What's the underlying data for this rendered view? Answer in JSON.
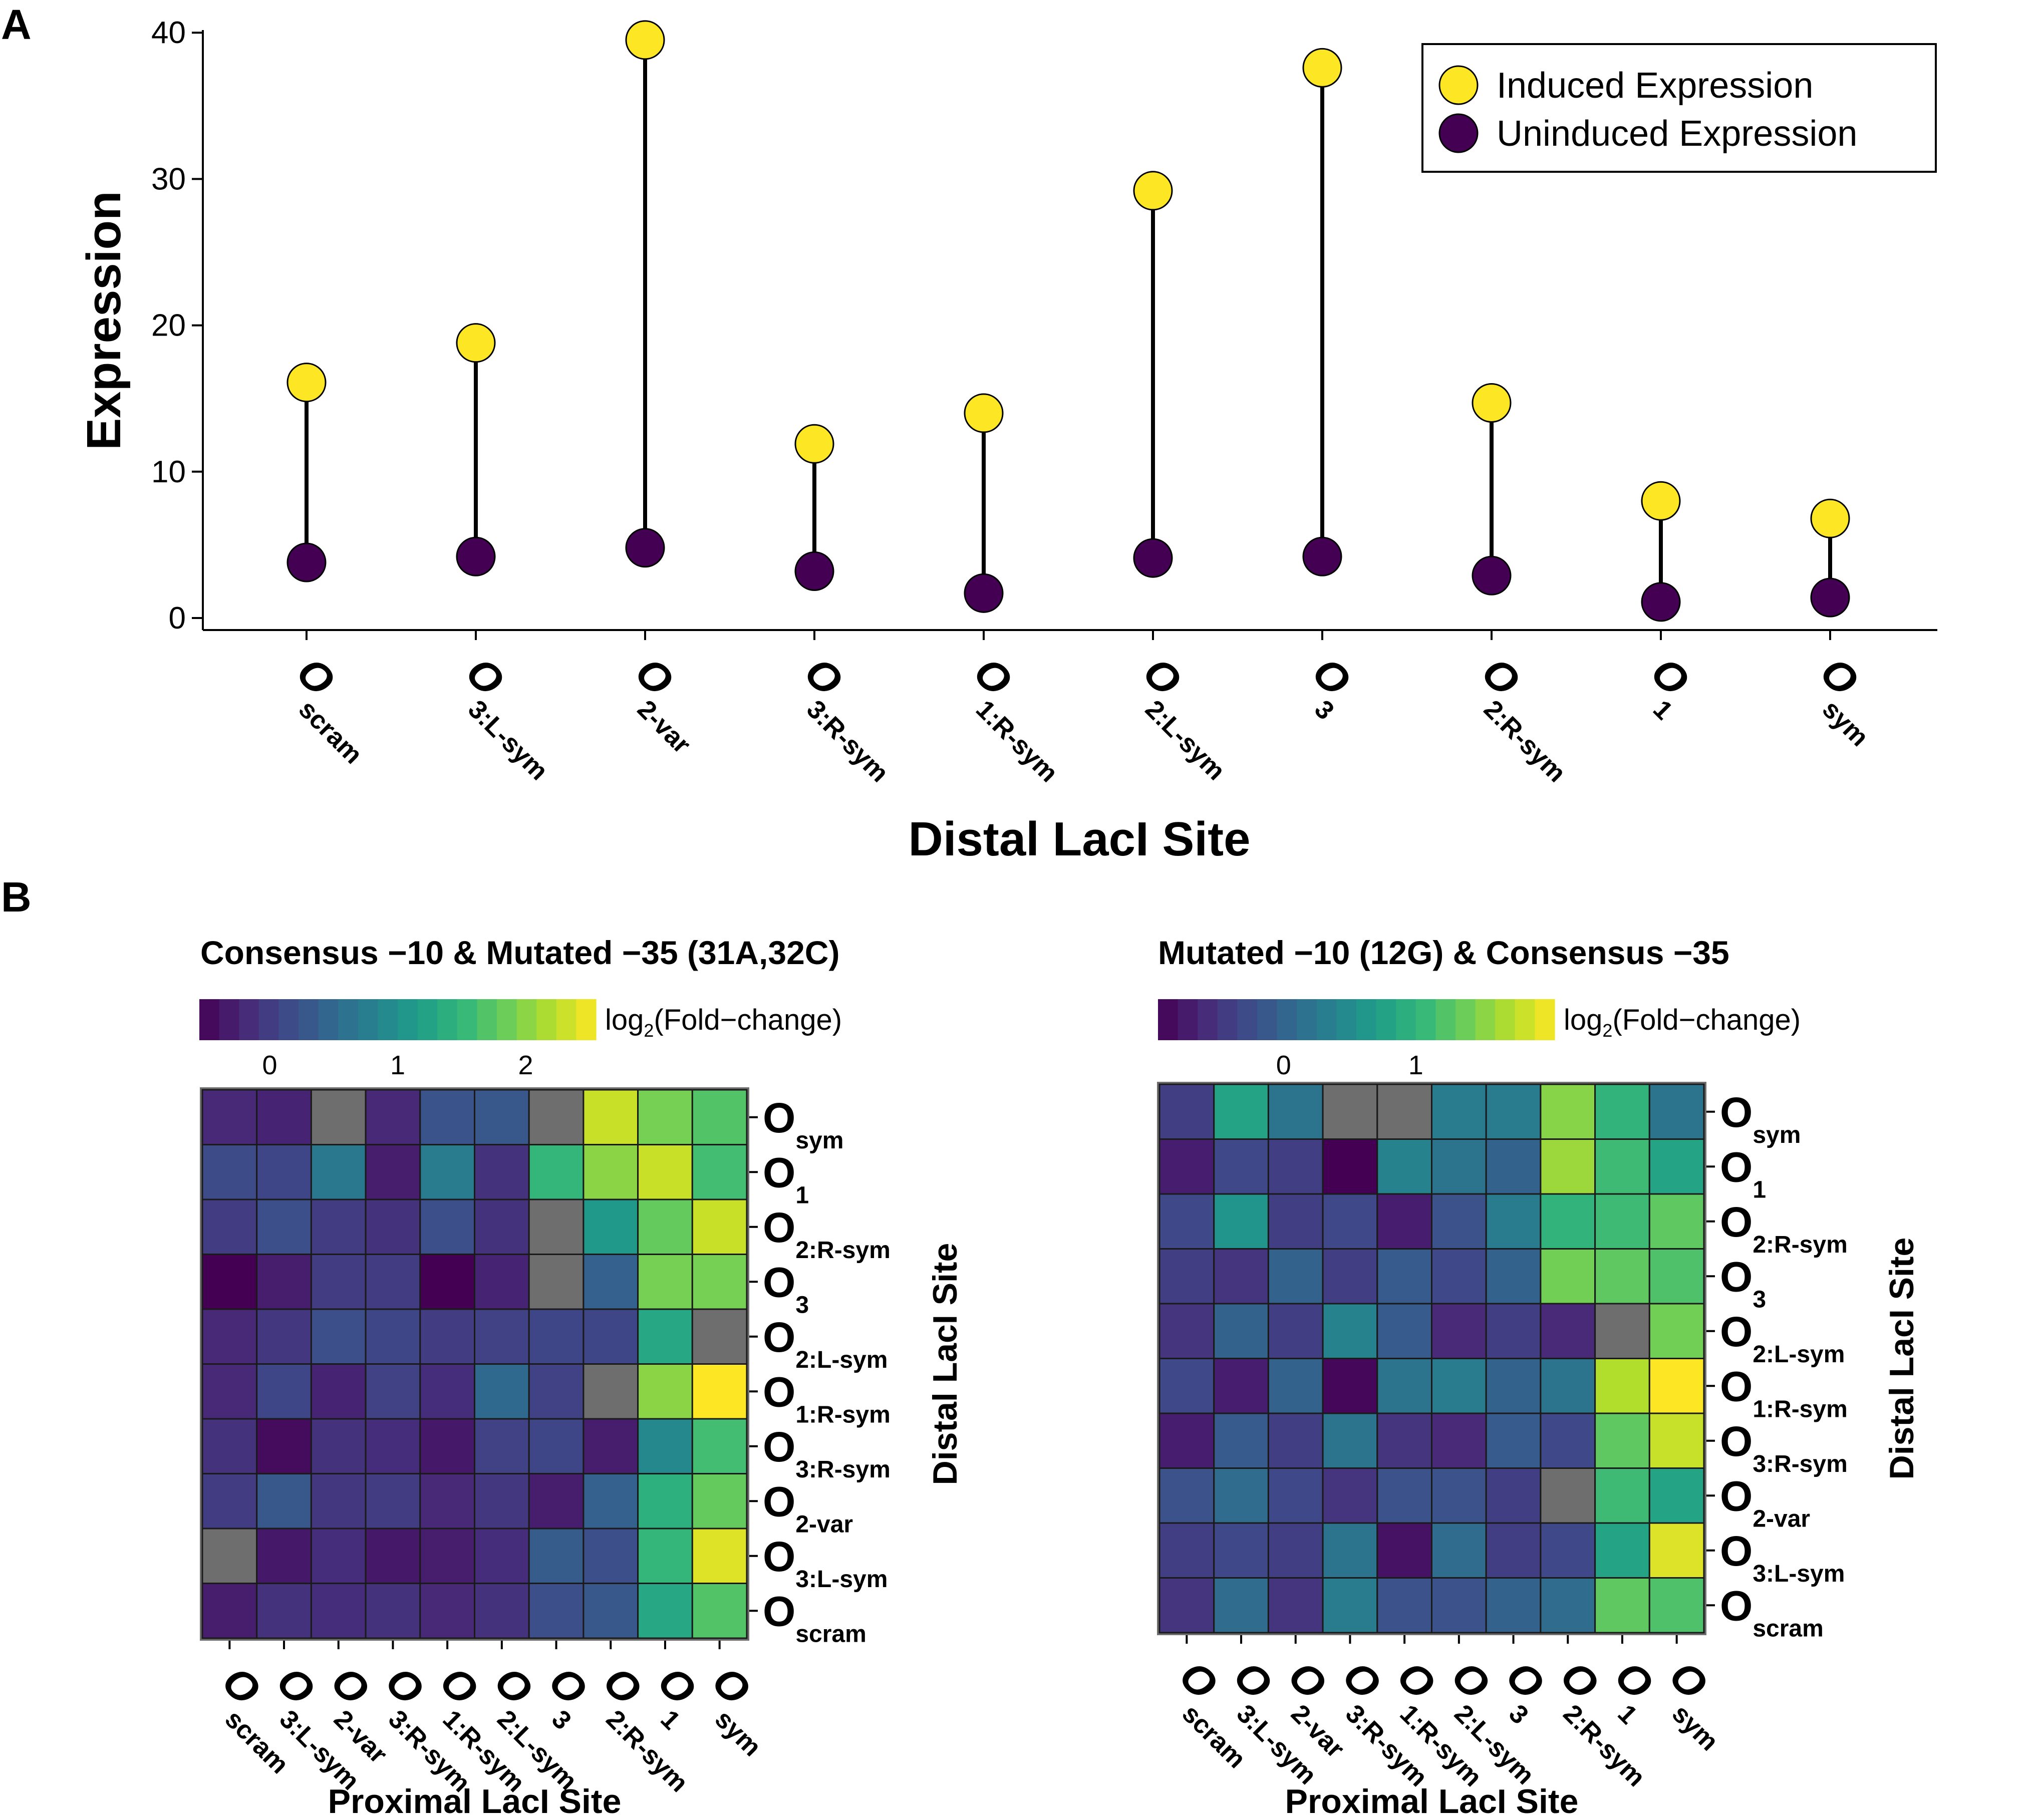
{
  "panels": {
    "a": "A",
    "b": "B"
  },
  "chart_data": [
    {
      "type": "scatter",
      "subtype": "dumbbell",
      "xlabel": "Distal LacI Site",
      "ylabel": "Expression",
      "ylim": [
        0,
        41
      ],
      "yticks": [
        0,
        10,
        20,
        30,
        40
      ],
      "grid": false,
      "legend_position": "top-right",
      "categories": [
        {
          "main": "O",
          "sub": "scram"
        },
        {
          "main": "O",
          "sub": "3:L-sym"
        },
        {
          "main": "O",
          "sub": "2-var"
        },
        {
          "main": "O",
          "sub": "3:R-sym"
        },
        {
          "main": "O",
          "sub": "1:R-sym"
        },
        {
          "main": "O",
          "sub": "2:L-sym"
        },
        {
          "main": "O",
          "sub": "3"
        },
        {
          "main": "O",
          "sub": "2:R-sym"
        },
        {
          "main": "O",
          "sub": "1"
        },
        {
          "main": "O",
          "sub": "sym"
        }
      ],
      "series": [
        {
          "name": "Induced Expression",
          "color": "#FDE725",
          "values": [
            16.1,
            18.8,
            39.5,
            11.9,
            14.0,
            29.2,
            37.6,
            14.7,
            8.0,
            6.8
          ]
        },
        {
          "name": "Uninduced Expression",
          "color": "#440154",
          "values": [
            3.8,
            4.2,
            4.8,
            3.2,
            1.7,
            4.1,
            4.2,
            2.9,
            1.1,
            1.4
          ]
        }
      ]
    },
    {
      "type": "heatmap",
      "title": "Consensus −10 & Mutated −35 (31A,32C)",
      "colorbar": {
        "label_main": "log",
        "label_sub": "2",
        "label_rest": "(Fold−change)",
        "min": -0.55,
        "max": 2.55,
        "ticks": [
          0,
          1,
          2
        ]
      },
      "xlabel": "Proximal LacI Site",
      "ylabel": "Distal LacI Site",
      "missing_color": "#6e6e6e",
      "x_categories": [
        {
          "main": "O",
          "sub": "scram"
        },
        {
          "main": "O",
          "sub": "3:L-sym"
        },
        {
          "main": "O",
          "sub": "2-var"
        },
        {
          "main": "O",
          "sub": "3:R-sym"
        },
        {
          "main": "O",
          "sub": "1:R-sym"
        },
        {
          "main": "O",
          "sub": "2:L-sym"
        },
        {
          "main": "O",
          "sub": "3"
        },
        {
          "main": "O",
          "sub": "2:R-sym"
        },
        {
          "main": "O",
          "sub": "1"
        },
        {
          "main": "O",
          "sub": "sym"
        }
      ],
      "y_categories": [
        {
          "main": "O",
          "sub": "sym"
        },
        {
          "main": "O",
          "sub": "1"
        },
        {
          "main": "O",
          "sub": "2:R-sym"
        },
        {
          "main": "O",
          "sub": "3"
        },
        {
          "main": "O",
          "sub": "2:L-sym"
        },
        {
          "main": "O",
          "sub": "1:R-sym"
        },
        {
          "main": "O",
          "sub": "3:R-sym"
        },
        {
          "main": "O",
          "sub": "2-var"
        },
        {
          "main": "O",
          "sub": "3:L-sym"
        },
        {
          "main": "O",
          "sub": "scram"
        }
      ],
      "values": [
        [
          -0.2,
          -0.25,
          null,
          -0.2,
          0.25,
          0.3,
          null,
          2.3,
          1.9,
          1.7
        ],
        [
          0.15,
          0.1,
          0.7,
          -0.3,
          0.75,
          -0.1,
          1.5,
          2.0,
          2.3,
          1.6
        ],
        [
          0.0,
          0.2,
          0.0,
          -0.1,
          0.2,
          -0.1,
          null,
          1.1,
          1.8,
          2.3
        ],
        [
          -0.55,
          -0.3,
          0.0,
          0.0,
          -0.55,
          -0.25,
          null,
          0.4,
          1.9,
          1.9
        ],
        [
          -0.2,
          -0.05,
          0.2,
          0.1,
          0.0,
          0.05,
          0.1,
          0.1,
          1.3,
          null
        ],
        [
          -0.2,
          0.1,
          -0.25,
          0.05,
          -0.15,
          0.5,
          0.05,
          null,
          2.0,
          2.55
        ],
        [
          -0.1,
          -0.45,
          -0.1,
          -0.15,
          -0.35,
          0.05,
          0.1,
          -0.3,
          0.9,
          1.6
        ],
        [
          0.0,
          0.3,
          -0.05,
          0.0,
          -0.2,
          -0.05,
          -0.3,
          0.4,
          1.4,
          1.8
        ],
        [
          null,
          -0.35,
          -0.15,
          -0.35,
          -0.3,
          -0.15,
          0.35,
          0.2,
          1.5,
          2.4
        ],
        [
          -0.3,
          -0.1,
          -0.15,
          -0.1,
          -0.2,
          -0.1,
          0.2,
          0.3,
          1.3,
          1.7
        ]
      ]
    },
    {
      "type": "heatmap",
      "title": "Mutated −10 (12G) & Consensus −35",
      "colorbar": {
        "label_main": "log",
        "label_sub": "2",
        "label_rest": "(Fold−change)",
        "min": -0.95,
        "max": 2.05,
        "ticks": [
          0,
          1
        ]
      },
      "xlabel": "Proximal LacI Site",
      "ylabel": "Distal LacI Site",
      "missing_color": "#6e6e6e",
      "x_categories": [
        {
          "main": "O",
          "sub": "scram"
        },
        {
          "main": "O",
          "sub": "3:L-sym"
        },
        {
          "main": "O",
          "sub": "2-var"
        },
        {
          "main": "O",
          "sub": "3:R-sym"
        },
        {
          "main": "O",
          "sub": "1:R-sym"
        },
        {
          "main": "O",
          "sub": "2:L-sym"
        },
        {
          "main": "O",
          "sub": "3"
        },
        {
          "main": "O",
          "sub": "2:R-sym"
        },
        {
          "main": "O",
          "sub": "1"
        },
        {
          "main": "O",
          "sub": "sym"
        }
      ],
      "y_categories": [
        {
          "main": "O",
          "sub": "sym"
        },
        {
          "main": "O",
          "sub": "1"
        },
        {
          "main": "O",
          "sub": "2:R-sym"
        },
        {
          "main": "O",
          "sub": "3"
        },
        {
          "main": "O",
          "sub": "2:L-sym"
        },
        {
          "main": "O",
          "sub": "1:R-sym"
        },
        {
          "main": "O",
          "sub": "3:R-sym"
        },
        {
          "main": "O",
          "sub": "2-var"
        },
        {
          "main": "O",
          "sub": "3:L-sym"
        },
        {
          "main": "O",
          "sub": "scram"
        }
      ],
      "values": [
        [
          -0.4,
          0.8,
          0.2,
          null,
          null,
          0.3,
          0.3,
          1.5,
          1.0,
          0.2
        ],
        [
          -0.7,
          -0.3,
          -0.4,
          -0.95,
          0.4,
          0.2,
          0.0,
          1.6,
          1.1,
          0.8
        ],
        [
          -0.3,
          0.6,
          -0.4,
          -0.3,
          -0.7,
          -0.2,
          0.3,
          1.0,
          1.1,
          1.3
        ],
        [
          -0.4,
          -0.5,
          0.0,
          -0.4,
          -0.1,
          -0.3,
          0.0,
          1.4,
          1.3,
          1.2
        ],
        [
          -0.5,
          0.0,
          -0.4,
          0.4,
          -0.1,
          -0.6,
          -0.4,
          -0.6,
          null,
          1.4
        ],
        [
          -0.3,
          -0.7,
          0.0,
          -0.9,
          0.2,
          0.3,
          0.0,
          0.2,
          1.7,
          2.05
        ],
        [
          -0.7,
          -0.1,
          -0.4,
          0.2,
          -0.5,
          -0.6,
          -0.1,
          -0.3,
          1.3,
          1.8
        ],
        [
          -0.2,
          0.1,
          -0.3,
          -0.5,
          -0.2,
          -0.2,
          -0.4,
          null,
          1.1,
          0.8
        ],
        [
          -0.4,
          -0.3,
          -0.4,
          0.2,
          -0.8,
          0.1,
          -0.4,
          -0.3,
          0.8,
          1.9
        ],
        [
          -0.5,
          0.1,
          -0.5,
          0.3,
          -0.2,
          -0.2,
          0.0,
          0.1,
          1.3,
          1.2
        ]
      ]
    }
  ]
}
